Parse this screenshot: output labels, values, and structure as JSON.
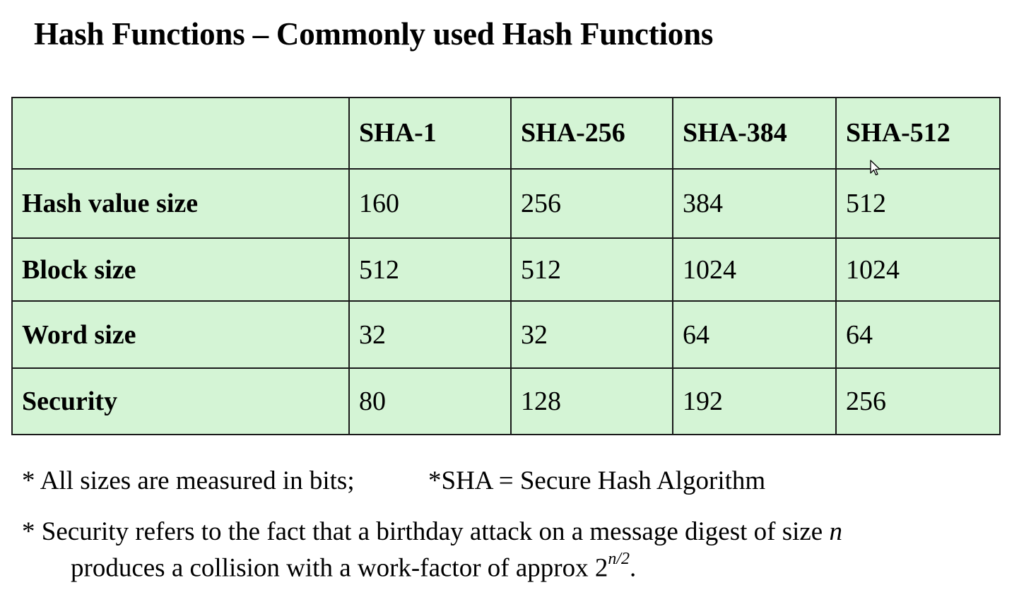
{
  "title": "Hash Functions – Commonly used Hash Functions",
  "table": {
    "columns": [
      "",
      "SHA-1",
      "SHA-256",
      "SHA-384",
      "SHA-512"
    ],
    "rows": [
      {
        "label": "Hash value size",
        "values": [
          "160",
          "256",
          "384",
          "512"
        ]
      },
      {
        "label": "Block size",
        "values": [
          "512",
          "512",
          "1024",
          "1024"
        ]
      },
      {
        "label": "Word size",
        "values": [
          "32",
          "32",
          "64",
          "64"
        ]
      },
      {
        "label": "Security",
        "values": [
          "80",
          "128",
          "192",
          "256"
        ]
      }
    ]
  },
  "notes": {
    "sizes": "* All sizes are measured in bits;",
    "sha": "*SHA = Secure Hash Algorithm",
    "security_line1": "* Security refers to the fact that a birthday attack on a message digest of size",
    "security_var": "n",
    "security_line2": "produces a collision with a work-factor of approx 2",
    "security_exponent": "n/2",
    "security_end": "."
  },
  "colors": {
    "table_background": "#d4f4d5",
    "border": "#1a1a1a"
  },
  "icons": {
    "cursor": "mouse-pointer-icon"
  }
}
